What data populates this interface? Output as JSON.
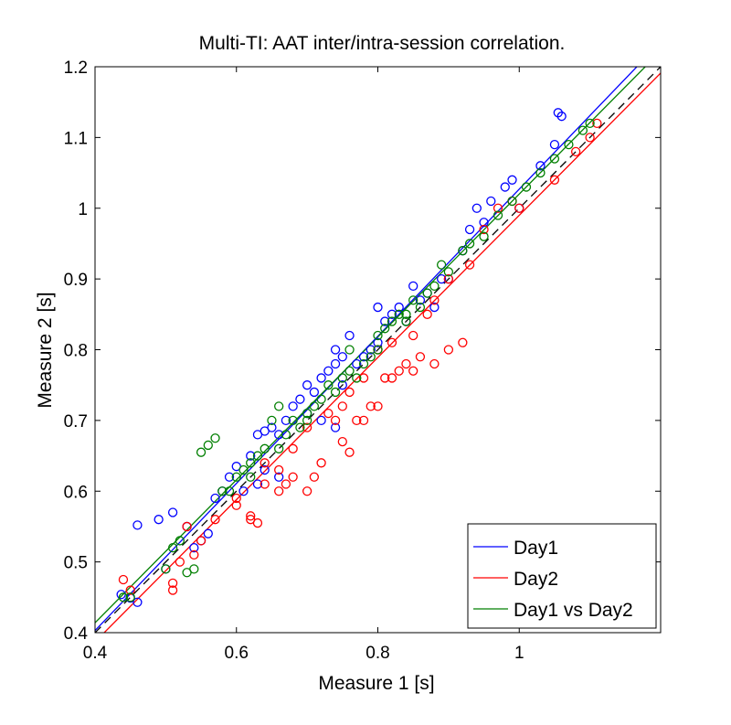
{
  "chart_data": {
    "type": "scatter",
    "title": "Multi-TI: AAT inter/intra-session correlation.",
    "xlabel": "Measure 1 [s]",
    "ylabel": "Measure 2 [s]",
    "xlim": [
      0.4,
      1.2
    ],
    "ylim": [
      0.4,
      1.2
    ],
    "xticks": [
      0.4,
      0.6,
      0.8,
      1.0
    ],
    "xtick_labels": [
      "0.4",
      "0.6",
      "0.8",
      "1"
    ],
    "yticks": [
      0.4,
      0.5,
      0.6,
      0.7,
      0.8,
      0.9,
      1.0,
      1.1,
      1.2
    ],
    "ytick_labels": [
      "0.4",
      "0.5",
      "0.6",
      "0.7",
      "0.8",
      "0.9",
      "1",
      "1.1",
      "1.2"
    ],
    "grid": false,
    "legend_position": "bottom-right",
    "identity_line": {
      "style": "dashed",
      "color": "#000000"
    },
    "series": [
      {
        "name": "Day1",
        "color": "#0000ff",
        "fit": {
          "slope": 1.04,
          "intercept": -0.013
        },
        "points": [
          [
            0.437,
            0.454
          ],
          [
            0.45,
            0.449
          ],
          [
            0.46,
            0.443
          ],
          [
            0.46,
            0.552
          ],
          [
            0.49,
            0.56
          ],
          [
            0.5,
            0.49
          ],
          [
            0.51,
            0.57
          ],
          [
            0.53,
            0.55
          ],
          [
            0.54,
            0.52
          ],
          [
            0.55,
            0.53
          ],
          [
            0.56,
            0.54
          ],
          [
            0.57,
            0.59
          ],
          [
            0.58,
            0.6
          ],
          [
            0.59,
            0.62
          ],
          [
            0.6,
            0.635
          ],
          [
            0.61,
            0.6
          ],
          [
            0.62,
            0.65
          ],
          [
            0.63,
            0.61
          ],
          [
            0.64,
            0.63
          ],
          [
            0.64,
            0.685
          ],
          [
            0.65,
            0.69
          ],
          [
            0.66,
            0.68
          ],
          [
            0.67,
            0.7
          ],
          [
            0.68,
            0.72
          ],
          [
            0.69,
            0.73
          ],
          [
            0.7,
            0.71
          ],
          [
            0.7,
            0.75
          ],
          [
            0.71,
            0.74
          ],
          [
            0.72,
            0.76
          ],
          [
            0.73,
            0.77
          ],
          [
            0.74,
            0.78
          ],
          [
            0.74,
            0.8
          ],
          [
            0.75,
            0.79
          ],
          [
            0.75,
            0.75
          ],
          [
            0.76,
            0.82
          ],
          [
            0.77,
            0.78
          ],
          [
            0.78,
            0.79
          ],
          [
            0.79,
            0.8
          ],
          [
            0.8,
            0.81
          ],
          [
            0.8,
            0.86
          ],
          [
            0.81,
            0.84
          ],
          [
            0.82,
            0.85
          ],
          [
            0.83,
            0.86
          ],
          [
            0.84,
            0.84
          ],
          [
            0.85,
            0.89
          ],
          [
            0.86,
            0.87
          ],
          [
            0.87,
            0.88
          ],
          [
            0.88,
            0.86
          ],
          [
            0.89,
            0.9
          ],
          [
            0.9,
            0.9
          ],
          [
            0.92,
            0.94
          ],
          [
            0.93,
            0.97
          ],
          [
            0.94,
            1.0
          ],
          [
            0.95,
            0.98
          ],
          [
            0.96,
            1.01
          ],
          [
            0.98,
            1.03
          ],
          [
            0.99,
            1.04
          ],
          [
            1.0,
            1.0
          ],
          [
            1.03,
            1.06
          ],
          [
            1.05,
            1.09
          ],
          [
            1.06,
            1.13
          ],
          [
            1.055,
            1.135
          ],
          [
            0.72,
            0.7
          ],
          [
            0.74,
            0.69
          ],
          [
            0.63,
            0.68
          ],
          [
            0.66,
            0.62
          ]
        ]
      },
      {
        "name": "Day2",
        "color": "#ff0000",
        "fit": {
          "slope": 1.005,
          "intercept": -0.015
        },
        "points": [
          [
            0.44,
            0.475
          ],
          [
            0.45,
            0.46
          ],
          [
            0.51,
            0.46
          ],
          [
            0.51,
            0.47
          ],
          [
            0.52,
            0.5
          ],
          [
            0.53,
            0.55
          ],
          [
            0.54,
            0.51
          ],
          [
            0.55,
            0.53
          ],
          [
            0.6,
            0.59
          ],
          [
            0.62,
            0.565
          ],
          [
            0.62,
            0.56
          ],
          [
            0.63,
            0.555
          ],
          [
            0.64,
            0.61
          ],
          [
            0.66,
            0.6
          ],
          [
            0.67,
            0.61
          ],
          [
            0.68,
            0.62
          ],
          [
            0.7,
            0.6
          ],
          [
            0.71,
            0.62
          ],
          [
            0.72,
            0.64
          ],
          [
            0.74,
            0.7
          ],
          [
            0.75,
            0.72
          ],
          [
            0.75,
            0.67
          ],
          [
            0.76,
            0.655
          ],
          [
            0.77,
            0.7
          ],
          [
            0.78,
            0.7
          ],
          [
            0.79,
            0.72
          ],
          [
            0.8,
            0.72
          ],
          [
            0.81,
            0.76
          ],
          [
            0.82,
            0.76
          ],
          [
            0.83,
            0.77
          ],
          [
            0.84,
            0.78
          ],
          [
            0.85,
            0.77
          ],
          [
            0.86,
            0.79
          ],
          [
            0.88,
            0.78
          ],
          [
            0.9,
            0.8
          ],
          [
            0.92,
            0.81
          ],
          [
            0.87,
            0.85
          ],
          [
            0.88,
            0.87
          ],
          [
            0.9,
            0.9
          ],
          [
            0.93,
            0.92
          ],
          [
            0.95,
            0.97
          ],
          [
            0.97,
            1.0
          ],
          [
            0.99,
            1.01
          ],
          [
            1.0,
            1.0
          ],
          [
            1.05,
            1.04
          ],
          [
            1.1,
            1.1
          ],
          [
            1.11,
            1.12
          ],
          [
            1.08,
            1.08
          ],
          [
            0.82,
            0.81
          ],
          [
            0.8,
            0.8
          ],
          [
            0.78,
            0.76
          ],
          [
            0.76,
            0.74
          ],
          [
            0.73,
            0.71
          ],
          [
            0.7,
            0.69
          ],
          [
            0.68,
            0.66
          ],
          [
            0.66,
            0.63
          ],
          [
            0.64,
            0.64
          ],
          [
            0.57,
            0.56
          ],
          [
            0.6,
            0.58
          ],
          [
            0.85,
            0.82
          ]
        ]
      },
      {
        "name": "Day1 vs Day2",
        "color": "#007f00",
        "fit": {
          "slope": 1.01,
          "intercept": 0.01
        },
        "points": [
          [
            0.44,
            0.45
          ],
          [
            0.45,
            0.45
          ],
          [
            0.5,
            0.49
          ],
          [
            0.51,
            0.52
          ],
          [
            0.52,
            0.53
          ],
          [
            0.53,
            0.485
          ],
          [
            0.54,
            0.49
          ],
          [
            0.55,
            0.655
          ],
          [
            0.56,
            0.665
          ],
          [
            0.57,
            0.675
          ],
          [
            0.58,
            0.6
          ],
          [
            0.59,
            0.6
          ],
          [
            0.6,
            0.62
          ],
          [
            0.61,
            0.63
          ],
          [
            0.62,
            0.64
          ],
          [
            0.63,
            0.65
          ],
          [
            0.64,
            0.66
          ],
          [
            0.65,
            0.7
          ],
          [
            0.66,
            0.72
          ],
          [
            0.67,
            0.68
          ],
          [
            0.68,
            0.7
          ],
          [
            0.69,
            0.69
          ],
          [
            0.7,
            0.71
          ],
          [
            0.71,
            0.72
          ],
          [
            0.72,
            0.73
          ],
          [
            0.73,
            0.75
          ],
          [
            0.74,
            0.74
          ],
          [
            0.75,
            0.76
          ],
          [
            0.76,
            0.77
          ],
          [
            0.77,
            0.76
          ],
          [
            0.78,
            0.78
          ],
          [
            0.79,
            0.79
          ],
          [
            0.8,
            0.82
          ],
          [
            0.81,
            0.83
          ],
          [
            0.82,
            0.84
          ],
          [
            0.83,
            0.85
          ],
          [
            0.84,
            0.84
          ],
          [
            0.85,
            0.87
          ],
          [
            0.86,
            0.86
          ],
          [
            0.87,
            0.88
          ],
          [
            0.88,
            0.89
          ],
          [
            0.89,
            0.92
          ],
          [
            0.9,
            0.91
          ],
          [
            0.92,
            0.94
          ],
          [
            0.93,
            0.95
          ],
          [
            0.95,
            0.96
          ],
          [
            0.97,
            0.99
          ],
          [
            0.99,
            1.01
          ],
          [
            1.01,
            1.03
          ],
          [
            1.03,
            1.05
          ],
          [
            1.05,
            1.07
          ],
          [
            1.07,
            1.09
          ],
          [
            1.09,
            1.11
          ],
          [
            1.1,
            1.12
          ],
          [
            0.66,
            0.66
          ],
          [
            0.7,
            0.7
          ],
          [
            0.76,
            0.8
          ],
          [
            0.8,
            0.8
          ],
          [
            0.84,
            0.85
          ],
          [
            0.62,
            0.62
          ]
        ]
      }
    ]
  }
}
